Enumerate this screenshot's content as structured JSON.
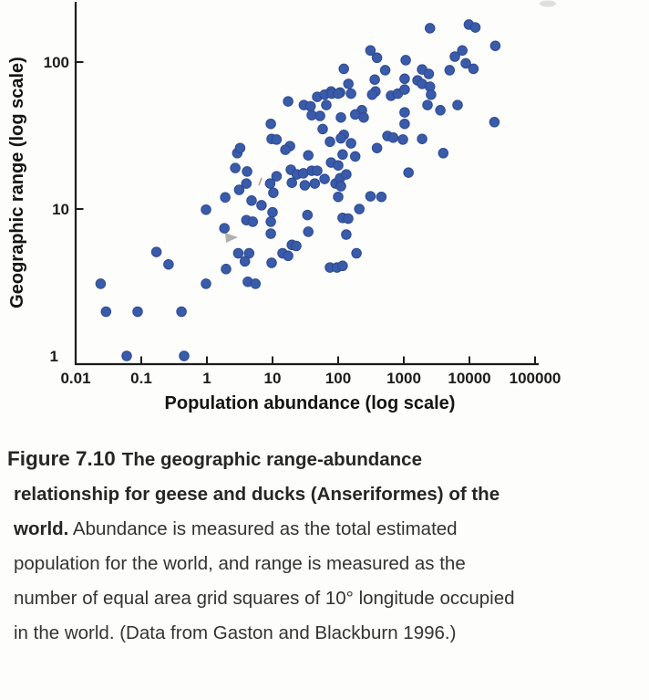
{
  "figure": {
    "caption": {
      "lines": [
        {
          "label": "Figure 7.10",
          "bold": "The geographic range-abundance",
          "regular": ""
        },
        {
          "label": "",
          "bold": "relationship for geese and ducks (Anseriformes) of the",
          "regular": ""
        },
        {
          "label": "",
          "bold": "world.",
          "regular": " Abundance is measured as the total estimated"
        },
        {
          "label": "",
          "bold": "",
          "regular": "population for the world, and range is measured as the"
        },
        {
          "label": "",
          "bold": "",
          "regular": "number of equal area grid squares of 10° longitude occupied"
        },
        {
          "label": "",
          "bold": "",
          "regular": "in the world. (Data from Gaston and Blackburn 1996.)"
        }
      ]
    }
  },
  "chart_data": {
    "type": "scatter",
    "title": "",
    "xlabel": "Population abundance (log scale)",
    "ylabel": "Geographic range (log scale)",
    "x_scale": "log",
    "y_scale": "log",
    "xlim": [
      0.01,
      100000
    ],
    "ylim": [
      1,
      250
    ],
    "grid": false,
    "legend": null,
    "x_ticks": [
      0.01,
      0.1,
      1,
      10,
      100,
      1000,
      10000,
      100000
    ],
    "x_tick_labels": [
      "0.01",
      "0.1",
      "1",
      "10",
      "100",
      "1000",
      "10000",
      "100000"
    ],
    "x_tick_marks": [
      0.1,
      1,
      10,
      100,
      1000,
      10000,
      100000
    ],
    "y_ticks": [
      1,
      10,
      100
    ],
    "y_tick_labels": [
      "1",
      "10",
      "100"
    ],
    "y_tick_marks": [
      10,
      100
    ],
    "axis_color": "#1c1c1c",
    "marker_color": "#3a5ba9",
    "marker_edge_color": "#2b4890",
    "points": [
      [
        0.024,
        3.1
      ],
      [
        0.029,
        2
      ],
      [
        0.088,
        2
      ],
      [
        0.41,
        2
      ],
      [
        0.06,
        1
      ],
      [
        0.45,
        1
      ],
      [
        0.17,
        5.1
      ],
      [
        0.26,
        4.2
      ],
      [
        0.97,
        3.1
      ],
      [
        0.97,
        9.9
      ],
      [
        1.9,
        12
      ],
      [
        1.85,
        7.4
      ],
      [
        1.96,
        3.9
      ],
      [
        3,
        5
      ],
      [
        3.1,
        13.5
      ],
      [
        2.9,
        24
      ],
      [
        2.7,
        19
      ],
      [
        3.2,
        26
      ],
      [
        4.1,
        18
      ],
      [
        6.8,
        10.6
      ],
      [
        4,
        14.9
      ],
      [
        9.2,
        14.9
      ],
      [
        19.7,
        15.1
      ],
      [
        44,
        14.9
      ],
      [
        91,
        14.9
      ],
      [
        4.8,
        11.4
      ],
      [
        10.3,
        12.9
      ],
      [
        100,
        12.1
      ],
      [
        310,
        12.2
      ],
      [
        455,
        12.1
      ],
      [
        10,
        9.5
      ],
      [
        210,
        10
      ],
      [
        4,
        8.4
      ],
      [
        5,
        8.2
      ],
      [
        9.4,
        8.2
      ],
      [
        117,
        8.7
      ],
      [
        142,
        8.6
      ],
      [
        34,
        9.1
      ],
      [
        35,
        7
      ],
      [
        9.4,
        6.8
      ],
      [
        133,
        6.7
      ],
      [
        19.7,
        5.7
      ],
      [
        23,
        5.6
      ],
      [
        14.2,
        5
      ],
      [
        17.3,
        4.8
      ],
      [
        4.4,
        5
      ],
      [
        3.8,
        4.4
      ],
      [
        9.7,
        4.3
      ],
      [
        190,
        5
      ],
      [
        75,
        4
      ],
      [
        96,
        4
      ],
      [
        117,
        4.1
      ],
      [
        4.2,
        3.2
      ],
      [
        5.5,
        3.1
      ],
      [
        310,
        120
      ],
      [
        390,
        107
      ],
      [
        122,
        90
      ],
      [
        520,
        88
      ],
      [
        360,
        76
      ],
      [
        143,
        71
      ],
      [
        78,
        63
      ],
      [
        107,
        62
      ],
      [
        370,
        63
      ],
      [
        17.3,
        54
      ],
      [
        48,
        58
      ],
      [
        62,
        60
      ],
      [
        80,
        61
      ],
      [
        100,
        61
      ],
      [
        157,
        61
      ],
      [
        330,
        60
      ],
      [
        640,
        59
      ],
      [
        810,
        61
      ],
      [
        30,
        51
      ],
      [
        38,
        50
      ],
      [
        66,
        51
      ],
      [
        230,
        47
      ],
      [
        39.5,
        43.5
      ],
      [
        53,
        43
      ],
      [
        110,
        42
      ],
      [
        182,
        44
      ],
      [
        245,
        42
      ],
      [
        9.4,
        38
      ],
      [
        58,
        35
      ],
      [
        9.7,
        30
      ],
      [
        122,
        32
      ],
      [
        11.5,
        29.7
      ],
      [
        18.4,
        26.8
      ],
      [
        15.7,
        25.3
      ],
      [
        35,
        23.2
      ],
      [
        75,
        28.7
      ],
      [
        110,
        30.3
      ],
      [
        117,
        23.5
      ],
      [
        78,
        20.7
      ],
      [
        100,
        19.8
      ],
      [
        19,
        18.5
      ],
      [
        23.5,
        17.2
      ],
      [
        29.5,
        17.5
      ],
      [
        39.5,
        18.2
      ],
      [
        48,
        18.2
      ],
      [
        11.5,
        16.7
      ],
      [
        62,
        16
      ],
      [
        107,
        16.2
      ],
      [
        133,
        17.2
      ],
      [
        31,
        14.5
      ],
      [
        110,
        14.3
      ],
      [
        157,
        28
      ],
      [
        182,
        22.8
      ],
      [
        390,
        26
      ],
      [
        565,
        31.4
      ],
      [
        690,
        30.6
      ],
      [
        970,
        29.7
      ],
      [
        1070,
        103
      ],
      [
        1030,
        77
      ],
      [
        1030,
        65
      ],
      [
        1030,
        45.5
      ],
      [
        1030,
        38
      ],
      [
        1180,
        17.7
      ],
      [
        1900,
        89
      ],
      [
        2400,
        83
      ],
      [
        1620,
        75
      ],
      [
        1900,
        71
      ],
      [
        2500,
        68
      ],
      [
        2600,
        60
      ],
      [
        2300,
        51
      ],
      [
        3600,
        47
      ],
      [
        6600,
        51
      ],
      [
        1900,
        30
      ],
      [
        4000,
        24
      ],
      [
        5000,
        88
      ],
      [
        11500,
        90
      ],
      [
        7800,
        120
      ],
      [
        6000,
        109
      ],
      [
        8800,
        98
      ],
      [
        2500,
        170
      ],
      [
        9800,
        180
      ],
      [
        12300,
        172
      ],
      [
        24800,
        129
      ],
      [
        24000,
        39
      ]
    ]
  }
}
